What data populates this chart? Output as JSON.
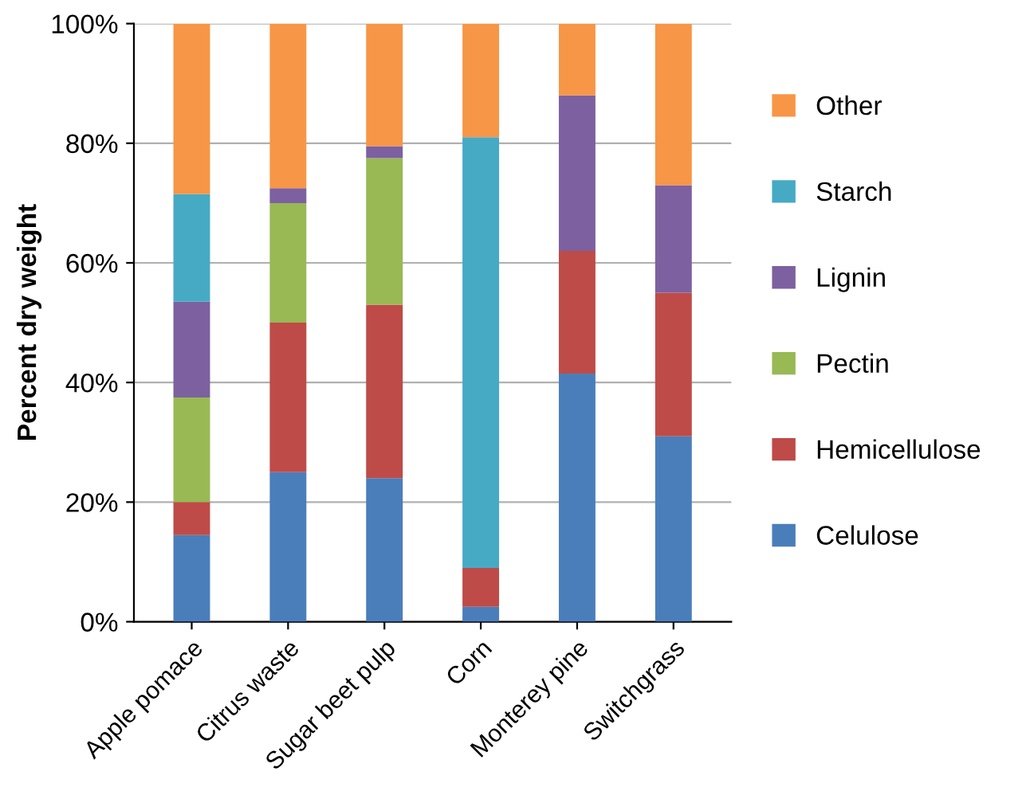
{
  "chart_data": {
    "type": "bar",
    "stacked": true,
    "ylabel": "Percent dry weight",
    "categories": [
      "Apple pomace",
      "Citrus waste",
      "Sugar beet pulp",
      "Corn",
      "Monterey pine",
      "Switchgrass"
    ],
    "series": [
      {
        "name": "Celulose",
        "color": "#4a7ebb",
        "values": [
          14.5,
          25,
          24,
          2.5,
          41.5,
          31
        ]
      },
      {
        "name": "Hemicellulose",
        "color": "#be4b48",
        "values": [
          5.5,
          25,
          29,
          6.5,
          20.5,
          24
        ]
      },
      {
        "name": "Pectin",
        "color": "#98b954",
        "values": [
          17.5,
          20,
          24.5,
          0,
          0,
          0
        ]
      },
      {
        "name": "Lignin",
        "color": "#7d60a0",
        "values": [
          16,
          2.5,
          2,
          0,
          26,
          18
        ]
      },
      {
        "name": "Starch",
        "color": "#46aac5",
        "values": [
          18,
          0,
          0,
          72,
          0,
          0
        ]
      },
      {
        "name": "Other",
        "color": "#f79646",
        "values": [
          28.5,
          27.5,
          20.5,
          19,
          12,
          27
        ]
      }
    ],
    "ylim": [
      0,
      100
    ],
    "yticks": [
      {
        "value": 0,
        "label": "0%"
      },
      {
        "value": 20,
        "label": "20%"
      },
      {
        "value": 40,
        "label": "40%"
      },
      {
        "value": 60,
        "label": "60%"
      },
      {
        "value": 80,
        "label": "80%"
      },
      {
        "value": 100,
        "label": "100%"
      }
    ],
    "grid": "y",
    "legend": "right"
  }
}
